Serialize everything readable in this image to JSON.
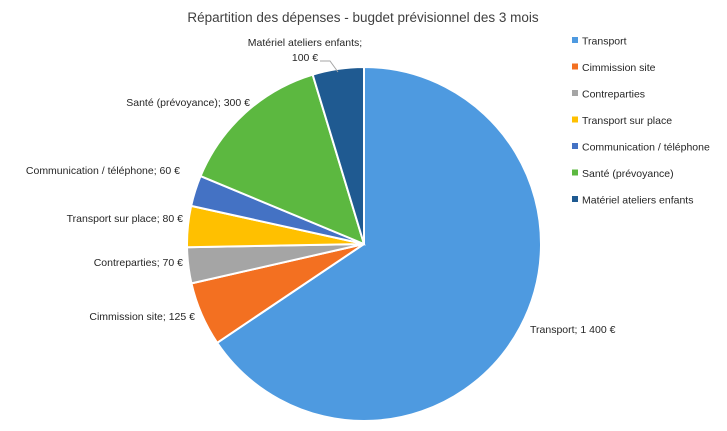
{
  "chart_data": {
    "type": "pie",
    "title": "Répartition des dépenses - bugdet prévisionnel des 3 mois",
    "legend_position": "right",
    "series": [
      {
        "categories": [
          "Transport",
          "Cimmission site",
          "Contreparties",
          "Transport sur place",
          "Communication / téléphone",
          "Santé (prévoyance)",
          "Matériel ateliers enfants"
        ],
        "values": [
          1400,
          125,
          70,
          80,
          60,
          300,
          100
        ],
        "colors": [
          "#4e9ae0",
          "#f37021",
          "#a5a5a5",
          "#ffc000",
          "#4472c4",
          "#5cb840",
          "#1f5a91"
        ],
        "data_labels": [
          [
            "Transport; 1 400 €"
          ],
          [
            "Cimmission site; 125 €"
          ],
          [
            "Contreparties; 70 €"
          ],
          [
            "Transport sur place; 80 €"
          ],
          [
            "Communication / téléphone; 60 €"
          ],
          [
            "Santé (prévoyance); 300 €"
          ],
          [
            "Matériel ateliers enfants;",
            "100 €"
          ]
        ]
      }
    ]
  }
}
